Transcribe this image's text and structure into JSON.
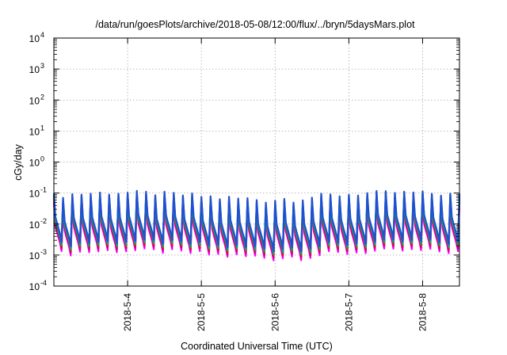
{
  "chart_data": {
    "type": "line",
    "title": "/data/run/goesPlots/archive/2018-05-08/12:00/flux/../bryn/5daysMars.plot",
    "xlabel": "Coordinated Universal Time (UTC)",
    "ylabel": "cGy/day",
    "y_scale": "log",
    "grid": true,
    "legend": "none",
    "xlim": [
      "2018-05-03T00:00",
      "2018-05-08T12:00"
    ],
    "ylim": [
      0.0001,
      10000
    ],
    "x_ticks": [
      {
        "value": "2018-05-04T00:00",
        "label": "2018-5-4"
      },
      {
        "value": "2018-05-05T00:00",
        "label": "2018-5-5"
      },
      {
        "value": "2018-05-06T00:00",
        "label": "2018-5-6"
      },
      {
        "value": "2018-05-07T00:00",
        "label": "2018-5-7"
      },
      {
        "value": "2018-05-08T00:00",
        "label": "2018-5-8"
      }
    ],
    "y_ticks": [
      {
        "value": 0.0001,
        "base": "10",
        "exp": "-4"
      },
      {
        "value": 0.001,
        "base": "10",
        "exp": "-3"
      },
      {
        "value": 0.01,
        "base": "10",
        "exp": "-2"
      },
      {
        "value": 0.1,
        "base": "10",
        "exp": "-1"
      },
      {
        "value": 1,
        "base": "10",
        "exp": "0"
      },
      {
        "value": 10,
        "base": "10",
        "exp": "1"
      },
      {
        "value": 100,
        "base": "10",
        "exp": "2"
      },
      {
        "value": 1000,
        "base": "10",
        "exp": "3"
      },
      {
        "value": 10000,
        "base": "10",
        "exp": "4"
      }
    ],
    "pattern": {
      "description_free": true,
      "period_hours": 3,
      "peak_values": [
        0.08,
        0.065,
        0.05,
        0.035,
        0.022,
        0.012
      ],
      "trough_values": [
        0.02,
        0.014,
        0.009,
        0.006,
        0.004,
        0.0022
      ]
    },
    "series": [
      {
        "color": "#ff00ff",
        "scale": 0.5
      },
      {
        "color": "#c000c0",
        "scale": 0.6
      },
      {
        "color": "#ff0000",
        "scale": 0.68
      },
      {
        "color": "#00b050",
        "scale": 0.78
      },
      {
        "color": "#00a0a0",
        "scale": 0.9
      },
      {
        "color": "#2050d0",
        "scale": 1.0
      }
    ]
  }
}
